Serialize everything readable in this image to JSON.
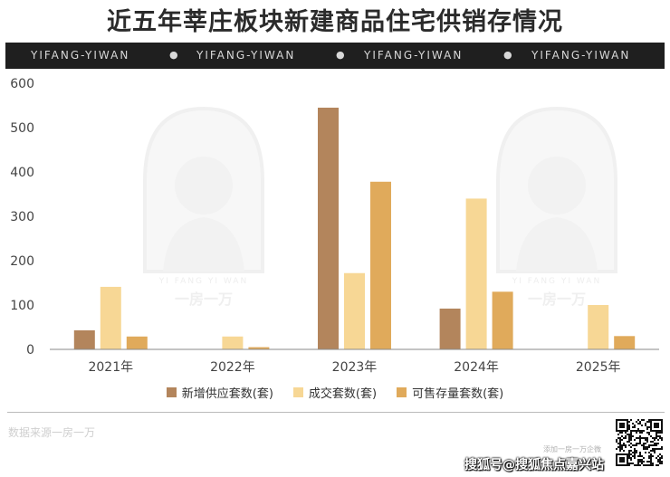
{
  "title": "近五年莘庄板块新建商品住宅供销存情况",
  "banner": {
    "items": [
      "YIFANG-YIWAN",
      "YIFANG-YIWAN",
      "YIFANG-YIWAN",
      "YIFANG-YIWAN"
    ],
    "separator": "●"
  },
  "watermark": {
    "caption_en": "YI FANG YI WAN",
    "caption_cn": "一房一万"
  },
  "chart_data": {
    "type": "bar",
    "title": "近五年莘庄板块新建商品住宅供销存情况",
    "categories": [
      "2021年",
      "2022年",
      "2023年",
      "2024年",
      "2025年"
    ],
    "series": [
      {
        "name": "新增供应套数(套)",
        "color": "#b3855c",
        "values": [
          43,
          0,
          545,
          92,
          0
        ]
      },
      {
        "name": "成交套数(套)",
        "color": "#f7d795",
        "values": [
          141,
          29,
          172,
          340,
          100
        ]
      },
      {
        "name": "可售存量套数(套)",
        "color": "#e0aa5b",
        "values": [
          29,
          5,
          378,
          130,
          30
        ]
      }
    ],
    "yticks": [
      0,
      100,
      200,
      300,
      400,
      500,
      600
    ],
    "ylim": [
      0,
      600
    ],
    "xlabel": "",
    "ylabel": "",
    "grid": false,
    "legend": "bottom"
  },
  "source": "数据来源一房一万",
  "qr_caption": "添加一房一万企微",
  "footer": "搜狐号@搜狐焦点嘉兴站"
}
